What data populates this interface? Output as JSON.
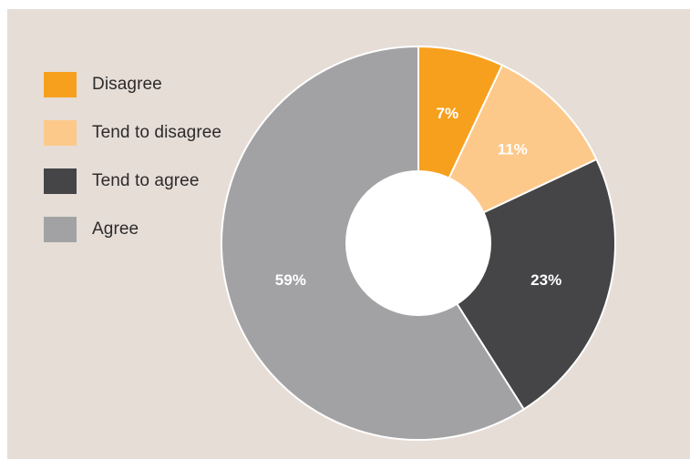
{
  "chart_data": {
    "type": "pie",
    "title": "",
    "legend_position": "top-left",
    "series": [
      {
        "name": "Disagree",
        "value": 7,
        "label": "7%",
        "color": "#f7a01d"
      },
      {
        "name": "Tend to disagree",
        "value": 11,
        "label": "11%",
        "color": "#fdc98a"
      },
      {
        "name": "Tend to agree",
        "value": 23,
        "label": "23%",
        "color": "#454547"
      },
      {
        "name": "Agree",
        "value": 59,
        "label": "59%",
        "color": "#a2a2a4"
      }
    ]
  }
}
